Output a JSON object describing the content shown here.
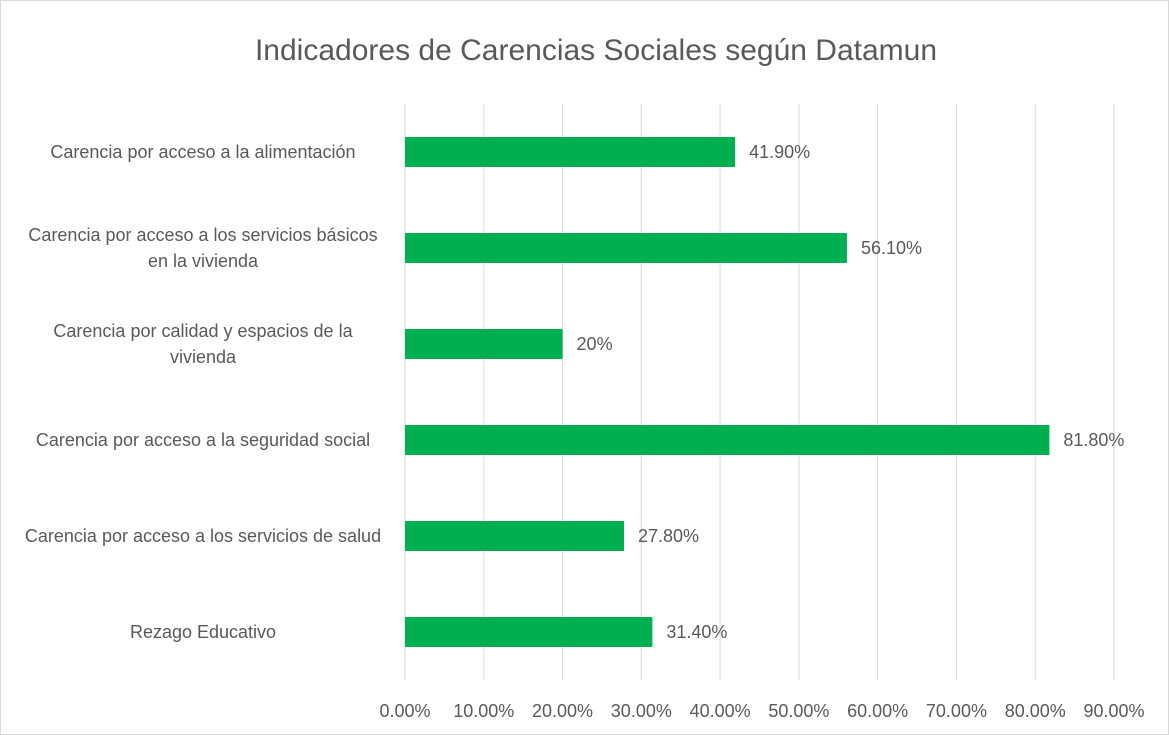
{
  "chart_data": {
    "type": "bar",
    "orientation": "horizontal",
    "title": "Indicadores de Carencias Sociales según Datamun",
    "categories": [
      "Carencia por acceso a la alimentación",
      "Carencia por acceso a los servicios básicos en la vivienda",
      "Carencia por calidad y espacios de la vivienda",
      "Carencia por acceso a la seguridad social",
      "Carencia por acceso a los servicios de salud",
      "Rezago Educativo"
    ],
    "values": [
      41.9,
      56.1,
      20,
      81.8,
      27.8,
      31.4
    ],
    "value_labels": [
      "41.90%",
      "56.10%",
      "20%",
      "81.80%",
      "27.80%",
      "31.40%"
    ],
    "color": "#00b050",
    "xlim": [
      0,
      90
    ],
    "xticks": [
      {
        "value": 0,
        "label": "0.00%"
      },
      {
        "value": 10,
        "label": "10.00%"
      },
      {
        "value": 20,
        "label": "20.00%"
      },
      {
        "value": 30,
        "label": "30.00%"
      },
      {
        "value": 40,
        "label": "40.00%"
      },
      {
        "value": 50,
        "label": "50.00%"
      },
      {
        "value": 60,
        "label": "60.00%"
      },
      {
        "value": 70,
        "label": "70.00%"
      },
      {
        "value": 80,
        "label": "80.00%"
      },
      {
        "value": 90,
        "label": "90.00%"
      }
    ],
    "grid": true
  }
}
